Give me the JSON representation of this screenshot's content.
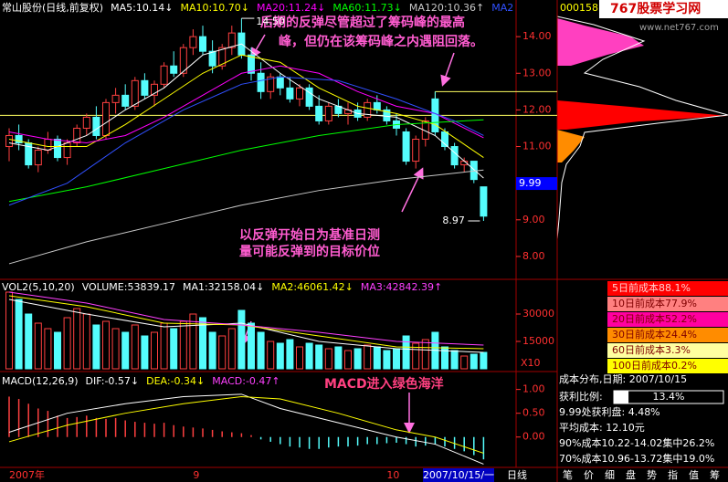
{
  "chart_data": [
    {
      "type": "candlestick",
      "title": "常山股份(日线,前复权)",
      "categories": [
        "2007年",
        null,
        null,
        null,
        null,
        null,
        null,
        null,
        null,
        null,
        null,
        null,
        null,
        null,
        null,
        null,
        null,
        null,
        null,
        "9",
        null,
        null,
        null,
        null,
        null,
        null,
        null,
        null,
        null,
        null,
        null,
        null,
        null,
        null,
        null,
        null,
        null,
        null,
        null,
        "10",
        null,
        null,
        null,
        null,
        null,
        null,
        null,
        null,
        null,
        null
      ],
      "ohlc": [
        [
          11.0,
          11.5,
          10.6,
          11.3
        ],
        [
          11.3,
          11.6,
          10.9,
          11.1
        ],
        [
          11.1,
          11.2,
          10.4,
          10.5
        ],
        [
          10.5,
          11.0,
          10.3,
          10.9
        ],
        [
          10.9,
          11.4,
          10.8,
          11.2
        ],
        [
          11.2,
          11.3,
          10.6,
          10.7
        ],
        [
          10.7,
          11.2,
          10.5,
          11.1
        ],
        [
          11.1,
          11.6,
          11.0,
          11.5
        ],
        [
          11.5,
          11.9,
          11.3,
          11.8
        ],
        [
          11.8,
          12.1,
          11.2,
          11.3
        ],
        [
          11.3,
          12.3,
          11.2,
          12.2
        ],
        [
          12.2,
          12.6,
          11.9,
          12.4
        ],
        [
          12.4,
          12.7,
          12.0,
          12.1
        ],
        [
          12.1,
          12.9,
          12.0,
          12.8
        ],
        [
          12.8,
          13.0,
          12.3,
          12.4
        ],
        [
          12.4,
          12.8,
          12.1,
          12.7
        ],
        [
          12.7,
          13.3,
          12.6,
          13.2
        ],
        [
          13.2,
          13.6,
          12.9,
          13.0
        ],
        [
          13.0,
          13.8,
          12.9,
          13.7
        ],
        [
          13.7,
          14.2,
          13.5,
          14.0
        ],
        [
          14.0,
          14.3,
          13.5,
          13.6
        ],
        [
          13.6,
          13.9,
          13.0,
          13.2
        ],
        [
          13.2,
          13.8,
          13.1,
          13.7
        ],
        [
          13.7,
          14.3,
          13.5,
          14.1
        ],
        [
          14.1,
          14.5,
          13.4,
          13.5
        ],
        [
          13.5,
          13.7,
          12.8,
          13.0
        ],
        [
          13.0,
          13.3,
          12.3,
          12.5
        ],
        [
          12.5,
          13.0,
          12.3,
          12.9
        ],
        [
          12.9,
          13.0,
          12.4,
          12.6
        ],
        [
          12.6,
          12.9,
          12.2,
          12.3
        ],
        [
          12.3,
          12.7,
          12.1,
          12.6
        ],
        [
          12.6,
          12.7,
          12.0,
          12.1
        ],
        [
          12.1,
          12.4,
          11.6,
          11.7
        ],
        [
          11.7,
          12.2,
          11.6,
          12.1
        ],
        [
          12.1,
          12.3,
          11.8,
          11.9
        ],
        [
          11.9,
          12.2,
          11.6,
          12.0
        ],
        [
          12.0,
          12.2,
          11.7,
          11.8
        ],
        [
          11.8,
          12.3,
          11.7,
          12.2
        ],
        [
          12.2,
          12.4,
          11.9,
          12.0
        ],
        [
          12.0,
          12.1,
          11.6,
          11.7
        ],
        [
          11.7,
          11.9,
          11.3,
          11.5
        ],
        [
          11.4,
          11.5,
          10.5,
          10.6
        ],
        [
          10.6,
          11.3,
          10.4,
          11.2
        ],
        [
          11.2,
          11.8,
          11.0,
          11.7
        ],
        [
          12.3,
          12.5,
          11.3,
          11.4
        ],
        [
          11.4,
          11.5,
          10.9,
          11.0
        ],
        [
          11.0,
          11.1,
          10.4,
          10.5
        ],
        [
          10.5,
          10.7,
          10.3,
          10.6
        ],
        [
          10.6,
          10.6,
          10.0,
          10.1
        ],
        [
          9.9,
          9.9,
          8.97,
          9.1
        ]
      ],
      "up_color": "#ff4040",
      "down_color": "#54fcfc",
      "series": [
        {
          "name": "MA5:10.14↓",
          "color": "#ffffff",
          "x": [
            0,
            4,
            8,
            12,
            16,
            20,
            24,
            28,
            32,
            36,
            40,
            44,
            49
          ],
          "values": [
            11.1,
            10.9,
            11.3,
            12.0,
            12.6,
            13.5,
            13.8,
            13.0,
            12.3,
            11.9,
            11.8,
            11.3,
            10.14
          ]
        },
        {
          "name": "MA10:10.70↓",
          "color": "#ffff00",
          "x": [
            0,
            4,
            8,
            12,
            16,
            20,
            24,
            28,
            32,
            36,
            40,
            44,
            49
          ],
          "values": [
            11.2,
            11.0,
            11.0,
            11.6,
            12.3,
            13.0,
            13.5,
            13.3,
            12.6,
            12.1,
            11.9,
            11.6,
            10.7
          ]
        },
        {
          "name": "MA20:11.24↓",
          "color": "#ff00ff",
          "x": [
            0,
            4,
            8,
            12,
            16,
            20,
            24,
            28,
            32,
            36,
            40,
            44,
            49
          ],
          "values": [
            11.4,
            11.2,
            11.1,
            11.3,
            11.8,
            12.4,
            13.0,
            13.2,
            13.0,
            12.5,
            12.1,
            11.9,
            11.24
          ]
        },
        {
          "name": "MA60:11.73↓",
          "color": "#00ff00",
          "x": [
            0,
            8,
            16,
            24,
            32,
            40,
            49
          ],
          "values": [
            9.5,
            9.9,
            10.4,
            10.9,
            11.3,
            11.6,
            11.73
          ]
        },
        {
          "name": "MA120:10.36↑",
          "color": "#c8c8c8",
          "x": [
            0,
            8,
            16,
            24,
            32,
            40,
            49
          ],
          "values": [
            7.8,
            8.4,
            8.9,
            9.4,
            9.8,
            10.1,
            10.36
          ]
        },
        {
          "name": "MA2",
          "color": "#3050ff",
          "x": [
            0,
            6,
            12,
            18,
            24,
            28,
            34,
            40,
            46,
            49
          ],
          "values": [
            9.4,
            10.0,
            11.1,
            12.0,
            12.7,
            12.9,
            12.8,
            12.3,
            11.7,
            11.3
          ]
        }
      ],
      "ylim": [
        7.4,
        15.0
      ],
      "yticks": [
        {
          "value": 14,
          "label": "14.00"
        },
        {
          "value": 13,
          "label": "13.00"
        },
        {
          "value": 12,
          "label": "12.00"
        },
        {
          "value": 11,
          "label": "11.00"
        },
        {
          "value": 10,
          "label": "10.00"
        },
        {
          "value": 9,
          "label": "9.00"
        },
        {
          "value": 8,
          "label": "8.00"
        }
      ],
      "reference_lines": [
        12.5,
        11.85
      ],
      "high_label": {
        "value": 14.5,
        "label": "14.50"
      },
      "low_label": {
        "value": 8.97,
        "label": "8.97"
      },
      "price_marker": {
        "value": 9.99,
        "label": "9.99"
      },
      "cursor_date": "2007/10/15/一",
      "period": "日线",
      "annotations": [
        "后期的反弹尽管超过了筹码峰的最高",
        "峰，但仍在该筹码峰之内遇阻回落。",
        "以反弹开始日为基准日测",
        "量可能反弹到的目标价位"
      ]
    },
    {
      "type": "bar",
      "title": "VOL2(5,10,20)",
      "bar_name": "VOLUME:53839.17",
      "bar_name_position": "start",
      "bar_name_color": "#ffffff",
      "values": [
        42000,
        38000,
        30000,
        25000,
        22000,
        20000,
        28000,
        33000,
        30000,
        24000,
        26000,
        22000,
        20000,
        24000,
        18000,
        20000,
        25000,
        22000,
        26000,
        30000,
        28000,
        20000,
        18000,
        22000,
        32000,
        25000,
        20000,
        15000,
        14000,
        16000,
        12000,
        14000,
        13000,
        11000,
        12000,
        10000,
        11000,
        13000,
        12000,
        10000,
        11000,
        18000,
        14000,
        16000,
        20000,
        12000,
        10000,
        7000,
        8000,
        9000
      ],
      "series": [
        {
          "name": "MA1:32158.04↓",
          "color": "#ffffff",
          "x": [
            0,
            8,
            16,
            24,
            32,
            40,
            49
          ],
          "values": [
            38000,
            30000,
            23000,
            25000,
            15000,
            11000,
            9000
          ]
        },
        {
          "name": "MA2:46061.42↓",
          "color": "#ffff00",
          "x": [
            0,
            8,
            16,
            24,
            32,
            40,
            49
          ],
          "values": [
            40000,
            34000,
            25000,
            24000,
            18000,
            12000,
            11000
          ]
        },
        {
          "name": "MA3:42842.39↑",
          "color": "#ff40ff",
          "x": [
            0,
            8,
            16,
            24,
            32,
            40,
            49
          ],
          "values": [
            42000,
            36000,
            27000,
            24000,
            20000,
            15000,
            13000
          ]
        }
      ],
      "ylim": [
        0,
        46000
      ],
      "yticks": [
        15000,
        30000
      ],
      "unit": "X10"
    },
    {
      "type": "bar",
      "title": "MACD(12,26,9)",
      "bar_name": "MACD:-0.47↑",
      "bar_name_position": "end",
      "bar_name_color": "#ff40ff",
      "pos_color": "#ff4040",
      "neg_color": "#54fcfc",
      "values": [
        0.85,
        0.8,
        0.7,
        0.6,
        0.55,
        0.45,
        0.4,
        0.42,
        0.45,
        0.4,
        0.38,
        0.4,
        0.35,
        0.32,
        0.3,
        0.28,
        0.3,
        0.25,
        0.22,
        0.2,
        0.18,
        0.15,
        0.12,
        0.1,
        0.08,
        0.04,
        -0.05,
        -0.1,
        -0.15,
        -0.2,
        -0.22,
        -0.25,
        -0.25,
        -0.22,
        -0.2,
        -0.2,
        -0.18,
        -0.15,
        -0.15,
        -0.13,
        -0.12,
        -0.15,
        -0.2,
        -0.18,
        -0.15,
        -0.2,
        -0.25,
        -0.3,
        -0.38,
        -0.47
      ],
      "series": [
        {
          "name": "DIF:-0.57↓",
          "color": "#ffffff",
          "x": [
            0,
            6,
            12,
            18,
            24,
            28,
            34,
            40,
            44,
            49
          ],
          "values": [
            0.1,
            0.5,
            0.7,
            0.85,
            0.9,
            0.6,
            0.3,
            0.0,
            -0.15,
            -0.57
          ]
        },
        {
          "name": "DEA:-0.34↓",
          "color": "#ffff00",
          "x": [
            0,
            6,
            12,
            18,
            24,
            28,
            34,
            40,
            44,
            49
          ],
          "values": [
            -0.1,
            0.25,
            0.5,
            0.7,
            0.85,
            0.8,
            0.5,
            0.15,
            0.0,
            -0.34
          ]
        }
      ],
      "ylim": [
        -0.6,
        1.3
      ],
      "yticks": [
        {
          "value": 1,
          "label": "1.00"
        },
        {
          "value": 0.5,
          "label": "0.50"
        },
        {
          "value": 0,
          "label": "0.00"
        }
      ],
      "annotation": "MACD进入绿色海洋"
    }
  ],
  "chip_panel": {
    "code": "000158",
    "logo": "767股票学习网",
    "url": "www.net767.com",
    "legend": [
      {
        "label": "5日前成本88.1%",
        "color": "#ff0000"
      },
      {
        "label": "10日前成本77.9%",
        "color": "#ff8080"
      },
      {
        "label": "20日前成本52.2%",
        "color": "#ff00a0"
      },
      {
        "label": "30日前成本24.4%",
        "color": "#ff8c00"
      },
      {
        "label": "60日前成本3.3%",
        "color": "#ffffa0"
      },
      {
        "label": "100日前成本0.2%",
        "color": "#ffff00"
      }
    ],
    "title": "成本分布,日期: 2007/10/15",
    "profit": {
      "label": "获利比例:",
      "value": 13.4,
      "value_label": "13.4%"
    },
    "rows": [
      "9.99处获利盘: 4.48%",
      "平均成本: 12.10元",
      "90%成本10.22-14.02集中26.2%",
      "70%成本10.96-13.72集中19.0%"
    ]
  },
  "tabs": [
    "笔",
    "价",
    "细",
    "盘",
    "势",
    "指",
    "值",
    "筹"
  ]
}
